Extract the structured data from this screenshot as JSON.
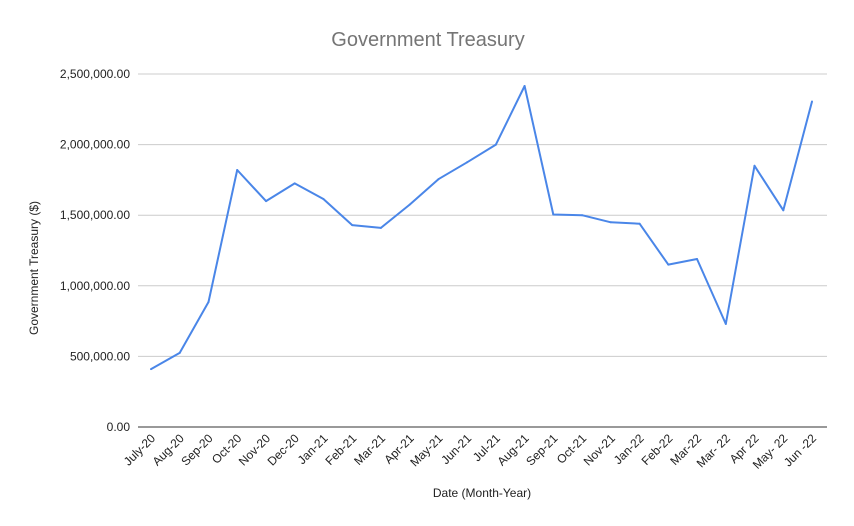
{
  "chart_data": {
    "type": "line",
    "title": "Government Treasury",
    "xlabel": "Date (Month-Year)",
    "ylabel": "Government Treasury ($)",
    "ylim": [
      0,
      2500000
    ],
    "yticks": [
      0,
      500000,
      1000000,
      1500000,
      2000000,
      2500000
    ],
    "ytick_labels": [
      "0.00",
      "500,000.00",
      "1,000,000.00",
      "1,500,000.00",
      "2,000,000.00",
      "2,500,000.00"
    ],
    "grid": true,
    "legend": "none",
    "categories": [
      "July-20",
      "Aug-20",
      "Sep-20",
      "Oct-20",
      "Nov-20",
      "Dec-20",
      "Jan-21",
      "Feb-21",
      "Mar-21",
      "Apr-21",
      "May-21",
      "Jun-21",
      "Jul-21",
      "Aug-21",
      "Sep-21",
      "Oct-21",
      "Nov-21",
      "Jan-22",
      "Feb-22",
      "Mar-22",
      "Mar- 22",
      "Apr 22",
      "May- 22",
      "Jun -22"
    ],
    "series": [
      {
        "color": "#4a86e8",
        "values": [
          410000,
          525000,
          885000,
          1820000,
          1600000,
          1725000,
          1615000,
          1430000,
          1410000,
          1575000,
          1755000,
          1875000,
          2000000,
          2415000,
          1505000,
          1500000,
          1450000,
          1440000,
          1150000,
          1190000,
          730000,
          1850000,
          1535000,
          2305000
        ]
      }
    ]
  }
}
